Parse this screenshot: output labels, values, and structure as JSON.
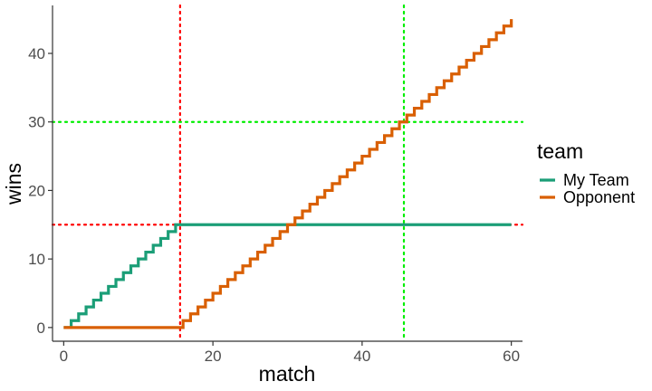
{
  "chart_data": {
    "type": "line",
    "xlabel": "match",
    "ylabel": "wins",
    "xlim": [
      -1.5,
      61.5
    ],
    "ylim": [
      -2,
      47
    ],
    "x_ticks": [
      0,
      20,
      40,
      60
    ],
    "y_ticks": [
      0,
      10,
      20,
      30,
      40
    ],
    "grid": false,
    "legend": {
      "title": "team",
      "position": "right"
    },
    "step": true,
    "x": [
      0,
      1,
      2,
      3,
      4,
      5,
      6,
      7,
      8,
      9,
      10,
      11,
      12,
      13,
      14,
      15,
      16,
      17,
      18,
      19,
      20,
      21,
      22,
      23,
      24,
      25,
      26,
      27,
      28,
      29,
      30,
      31,
      32,
      33,
      34,
      35,
      36,
      37,
      38,
      39,
      40,
      41,
      42,
      43,
      44,
      45,
      46,
      47,
      48,
      49,
      50,
      51,
      52,
      53,
      54,
      55,
      56,
      57,
      58,
      59,
      60
    ],
    "series": [
      {
        "name": "My Team",
        "color": "#1b9e77",
        "values": [
          0,
          1,
          2,
          3,
          4,
          5,
          6,
          7,
          8,
          9,
          10,
          11,
          12,
          13,
          14,
          15,
          15,
          15,
          15,
          15,
          15,
          15,
          15,
          15,
          15,
          15,
          15,
          15,
          15,
          15,
          15,
          15,
          15,
          15,
          15,
          15,
          15,
          15,
          15,
          15,
          15,
          15,
          15,
          15,
          15,
          15,
          15,
          15,
          15,
          15,
          15,
          15,
          15,
          15,
          15,
          15,
          15,
          15,
          15,
          15,
          15
        ]
      },
      {
        "name": "Opponent",
        "color": "#d95f02",
        "values": [
          0,
          0,
          0,
          0,
          0,
          0,
          0,
          0,
          0,
          0,
          0,
          0,
          0,
          0,
          0,
          0,
          1,
          2,
          3,
          4,
          5,
          6,
          7,
          8,
          9,
          10,
          11,
          12,
          13,
          14,
          15,
          16,
          17,
          18,
          19,
          20,
          21,
          22,
          23,
          24,
          25,
          26,
          27,
          28,
          29,
          30,
          31,
          32,
          33,
          34,
          35,
          36,
          37,
          38,
          39,
          40,
          41,
          42,
          43,
          44,
          45
        ]
      }
    ],
    "reference_lines": [
      {
        "orientation": "vertical",
        "value": 15.6,
        "color": "#ff0000",
        "style": "dotted"
      },
      {
        "orientation": "horizontal",
        "value": 15,
        "color": "#ff0000",
        "style": "dotted"
      },
      {
        "orientation": "vertical",
        "value": 45.6,
        "color": "#00ee00",
        "style": "dotted"
      },
      {
        "orientation": "horizontal",
        "value": 30,
        "color": "#00ee00",
        "style": "dotted"
      }
    ]
  }
}
